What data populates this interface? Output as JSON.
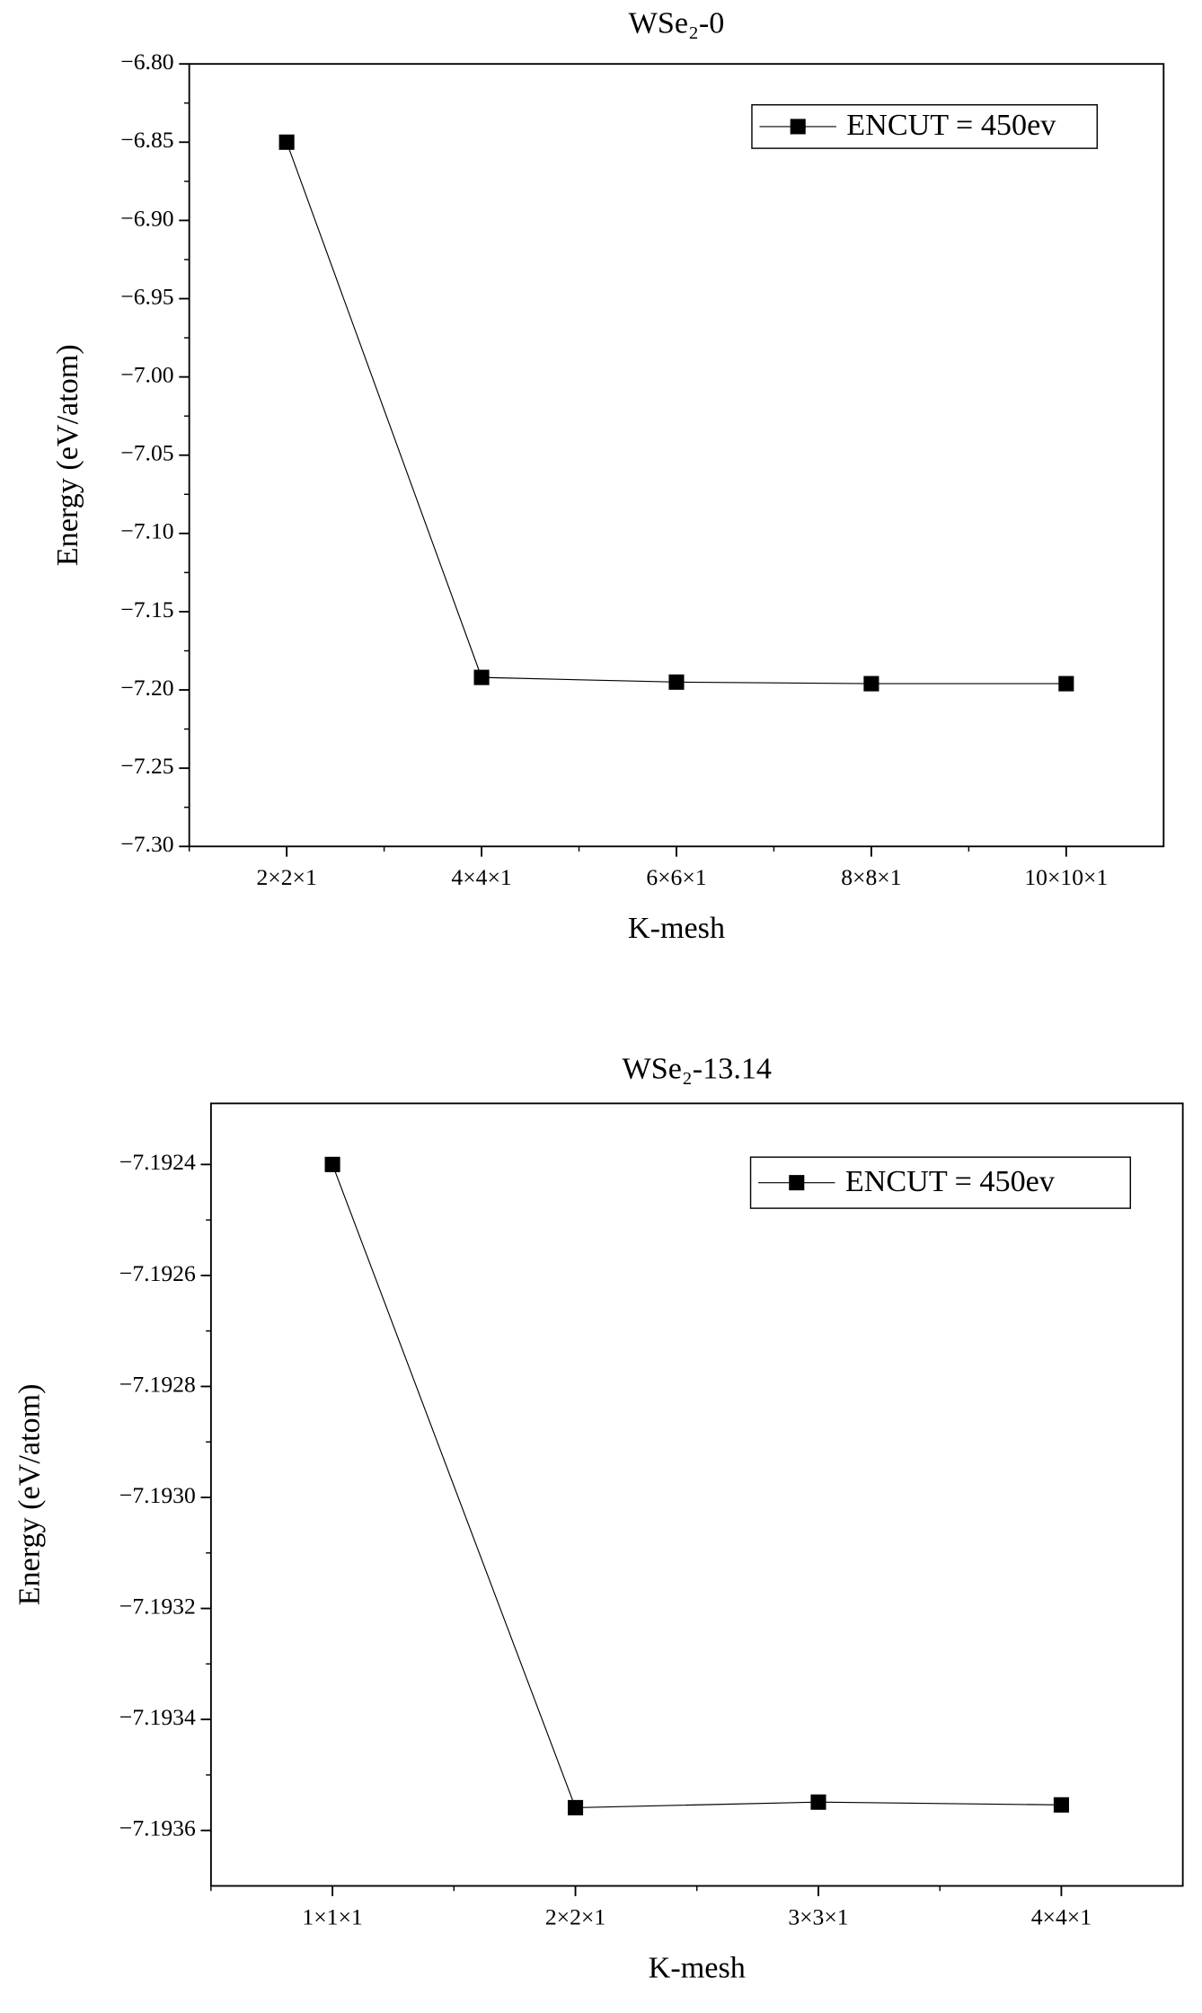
{
  "chart_data": [
    {
      "type": "line",
      "title": "WSe₂-0",
      "x_label": "K-mesh",
      "y_label": "Energy (eV/atom)",
      "categories": [
        "2×2×1",
        "4×4×1",
        "6×6×1",
        "8×8×1",
        "10×10×1"
      ],
      "series": [
        {
          "name": "ENCUT = 450ev",
          "color": "#000000",
          "values": [
            -6.85,
            -7.192,
            -7.195,
            -7.196,
            -7.196
          ]
        }
      ],
      "ylim": [
        -7.3,
        -6.8
      ],
      "yticks": [
        {
          "value": -7.3,
          "label": "−7.30"
        },
        {
          "value": -7.25,
          "label": "−7.25"
        },
        {
          "value": -7.2,
          "label": "−7.20"
        },
        {
          "value": -7.15,
          "label": "−7.15"
        },
        {
          "value": -7.1,
          "label": "−7.10"
        },
        {
          "value": -7.05,
          "label": "−7.05"
        },
        {
          "value": -7.0,
          "label": "−7.00"
        },
        {
          "value": -6.95,
          "label": "−6.95"
        },
        {
          "value": -6.9,
          "label": "−6.90"
        },
        {
          "value": -6.85,
          "label": "−6.85"
        },
        {
          "value": -6.8,
          "label": "−6.80"
        }
      ],
      "legend": "upper right"
    },
    {
      "type": "line",
      "title": "WSe₂-13.14",
      "x_label": "K-mesh",
      "y_label": "Energy (eV/atom)",
      "categories": [
        "1×1×1",
        "2×2×1",
        "3×3×1",
        "4×4×1"
      ],
      "series": [
        {
          "name": "ENCUT = 450ev",
          "color": "#000000",
          "values": [
            -7.1924,
            -7.193559,
            -7.193549,
            -7.193554
          ]
        }
      ],
      "ylim": [
        -7.1937,
        -7.19229
      ],
      "yticks": [
        {
          "value": -7.1936,
          "label": "−7.1936"
        },
        {
          "value": -7.1934,
          "label": "−7.1934"
        },
        {
          "value": -7.1932,
          "label": "−7.1932"
        },
        {
          "value": -7.193,
          "label": "−7.1930"
        },
        {
          "value": -7.1928,
          "label": "−7.1928"
        },
        {
          "value": -7.1926,
          "label": "−7.1926"
        },
        {
          "value": -7.1924,
          "label": "−7.1924"
        }
      ],
      "legend": "upper right"
    }
  ]
}
